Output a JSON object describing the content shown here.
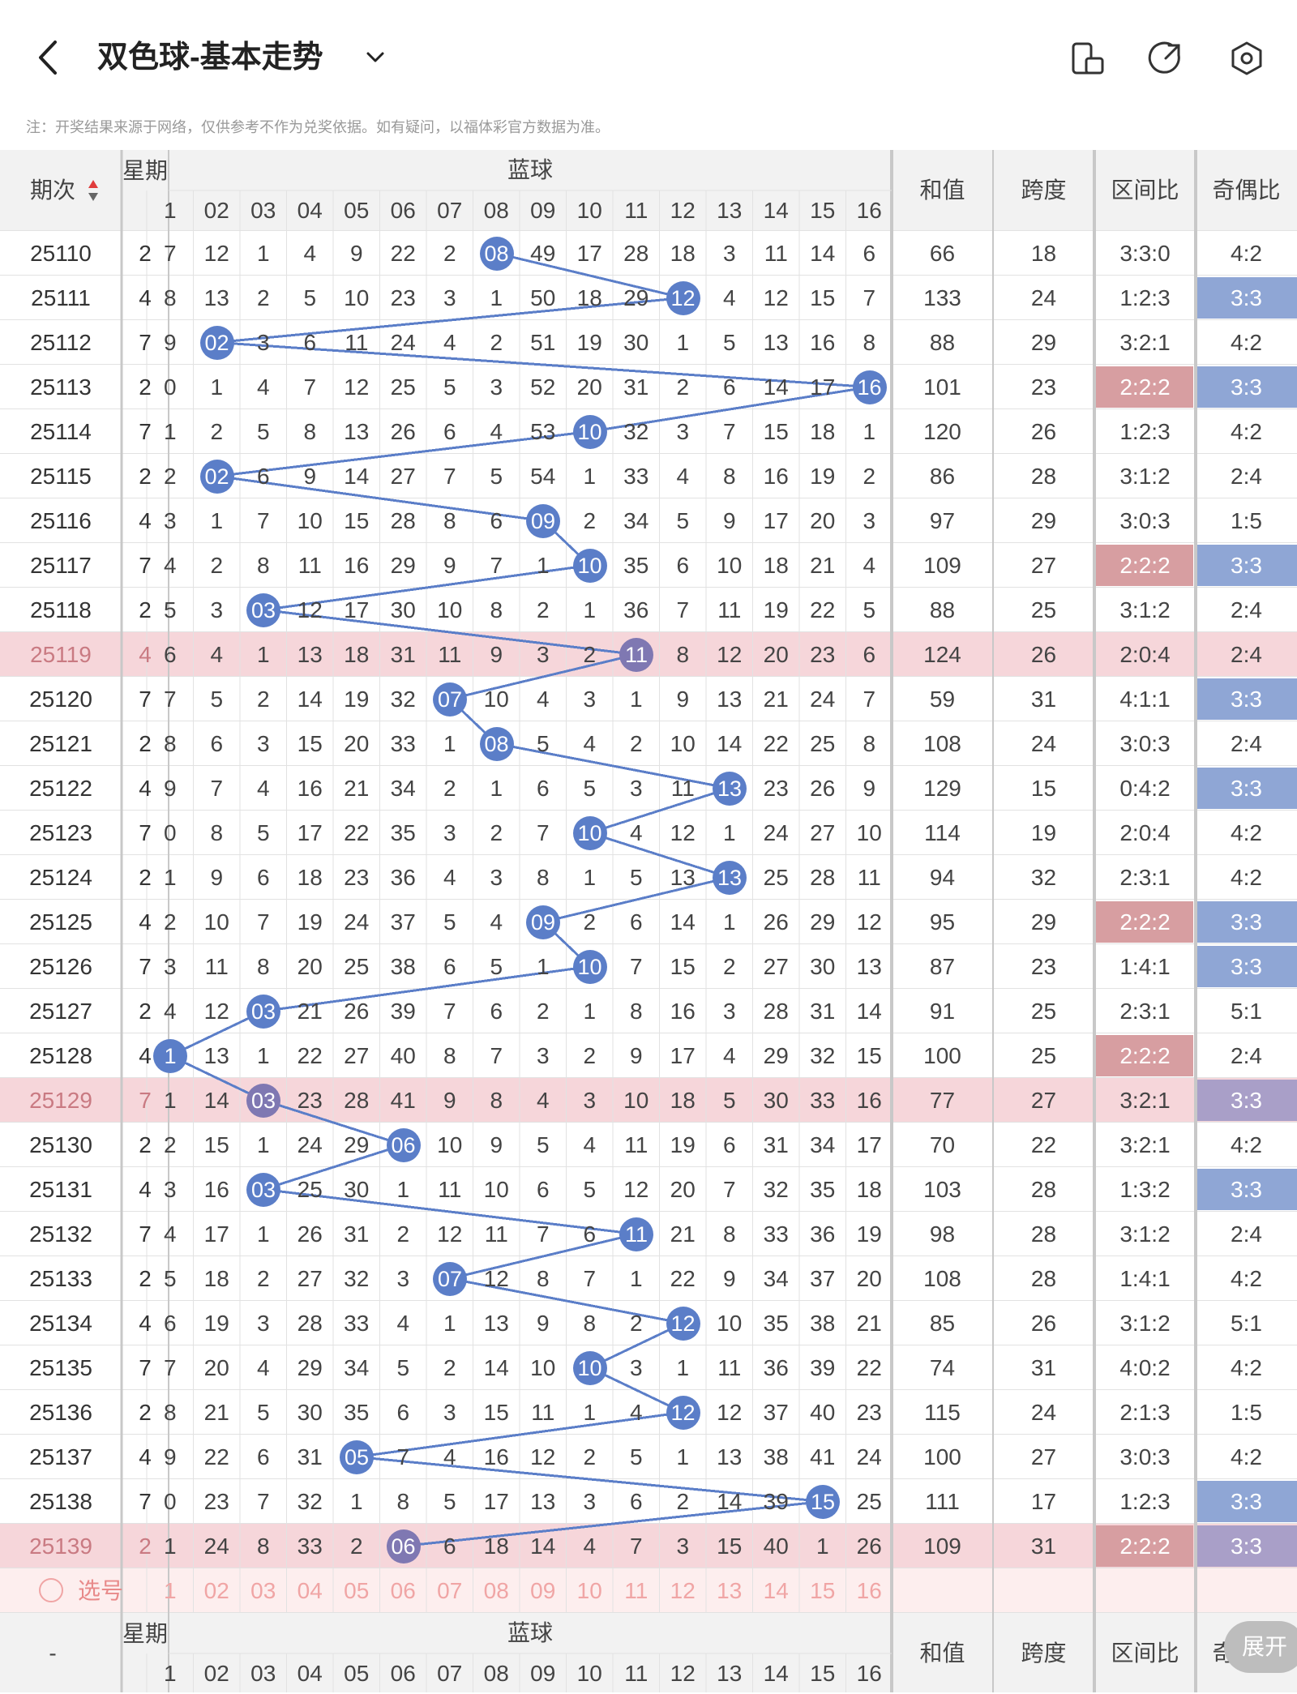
{
  "header": {
    "back_icon": "chevron-left-icon",
    "title": "双色球-基本走势",
    "dropdown_icon": "chevron-down-icon",
    "icons": [
      "phone-rotate-icon",
      "share-icon",
      "settings-icon"
    ]
  },
  "note": "注：开奖结果来源于网络，仅供参考不作为兑奖依据。如有疑问，以福体彩官方数据为准。",
  "table": {
    "issue_header": "期次",
    "week_header": "星期",
    "blue_header": "蓝球",
    "numbers": [
      "1",
      "02",
      "03",
      "04",
      "05",
      "06",
      "07",
      "08",
      "09",
      "10",
      "11",
      "12",
      "13",
      "14",
      "15",
      "16"
    ],
    "sum_header": "和值",
    "span_header": "跨度",
    "zone_header": "区间比",
    "oddeven_header": "奇偶比",
    "colors": {
      "ball": "#5b7ec8",
      "ball_dim": "#7f78b2",
      "highlight_row": "#f6d6da",
      "zone_highlight": "#d79ea1",
      "oe_highlight": "#8fa6d5",
      "oe_highlight_dim": "#a99fc8",
      "select_row": "#fdeeee"
    },
    "rows": [
      {
        "issue": "25110",
        "week": "2",
        "cells": [
          "7",
          "12",
          "1",
          "4",
          "9",
          "22",
          "2",
          "08",
          "49",
          "17",
          "28",
          "18",
          "3",
          "11",
          "14",
          "6"
        ],
        "blue": 8,
        "sum": "66",
        "span": "18",
        "zone": "3:3:0",
        "oe": "4:2"
      },
      {
        "issue": "25111",
        "week": "4",
        "cells": [
          "8",
          "13",
          "2",
          "5",
          "10",
          "23",
          "3",
          "1",
          "50",
          "18",
          "29",
          "12",
          "4",
          "12",
          "15",
          "7"
        ],
        "blue": 12,
        "sum": "133",
        "span": "24",
        "zone": "1:2:3",
        "oe": "3:3",
        "oe_hl": true
      },
      {
        "issue": "25112",
        "week": "7",
        "cells": [
          "9",
          "02",
          "3",
          "6",
          "11",
          "24",
          "4",
          "2",
          "51",
          "19",
          "30",
          "1",
          "5",
          "13",
          "16",
          "8"
        ],
        "blue": 2,
        "sum": "88",
        "span": "29",
        "zone": "3:2:1",
        "oe": "4:2"
      },
      {
        "issue": "25113",
        "week": "2",
        "cells": [
          "0",
          "1",
          "4",
          "7",
          "12",
          "25",
          "5",
          "3",
          "52",
          "20",
          "31",
          "2",
          "6",
          "14",
          "17",
          "16"
        ],
        "blue": 16,
        "sum": "101",
        "span": "23",
        "zone": "2:2:2",
        "zone_hl": true,
        "oe": "3:3",
        "oe_hl": true
      },
      {
        "issue": "25114",
        "week": "7",
        "cells": [
          "1",
          "2",
          "5",
          "8",
          "13",
          "26",
          "6",
          "4",
          "53",
          "10",
          "32",
          "3",
          "7",
          "15",
          "18",
          "1"
        ],
        "blue": 10,
        "sum": "120",
        "span": "26",
        "zone": "1:2:3",
        "oe": "4:2"
      },
      {
        "issue": "25115",
        "week": "2",
        "cells": [
          "2",
          "02",
          "6",
          "9",
          "14",
          "27",
          "7",
          "5",
          "54",
          "1",
          "33",
          "4",
          "8",
          "16",
          "19",
          "2"
        ],
        "blue": 2,
        "sum": "86",
        "span": "28",
        "zone": "3:1:2",
        "oe": "2:4"
      },
      {
        "issue": "25116",
        "week": "4",
        "cells": [
          "3",
          "1",
          "7",
          "10",
          "15",
          "28",
          "8",
          "6",
          "09",
          "2",
          "34",
          "5",
          "9",
          "17",
          "20",
          "3"
        ],
        "blue": 9,
        "sum": "97",
        "span": "29",
        "zone": "3:0:3",
        "oe": "1:5"
      },
      {
        "issue": "25117",
        "week": "7",
        "cells": [
          "4",
          "2",
          "8",
          "11",
          "16",
          "29",
          "9",
          "7",
          "1",
          "10",
          "35",
          "6",
          "10",
          "18",
          "21",
          "4"
        ],
        "blue": 10,
        "sum": "109",
        "span": "27",
        "zone": "2:2:2",
        "zone_hl": true,
        "oe": "3:3",
        "oe_hl": true
      },
      {
        "issue": "25118",
        "week": "2",
        "cells": [
          "5",
          "3",
          "03",
          "12",
          "17",
          "30",
          "10",
          "8",
          "2",
          "1",
          "36",
          "7",
          "11",
          "19",
          "22",
          "5"
        ],
        "blue": 3,
        "sum": "88",
        "span": "25",
        "zone": "3:1:2",
        "oe": "2:4"
      },
      {
        "issue": "25119",
        "week": "4",
        "cells": [
          "6",
          "4",
          "1",
          "13",
          "18",
          "31",
          "11",
          "9",
          "3",
          "2",
          "11",
          "8",
          "12",
          "20",
          "23",
          "6"
        ],
        "blue": 11,
        "sum": "124",
        "span": "26",
        "zone": "2:0:4",
        "oe": "2:4",
        "hl": true
      },
      {
        "issue": "25120",
        "week": "7",
        "cells": [
          "7",
          "5",
          "2",
          "14",
          "19",
          "32",
          "07",
          "10",
          "4",
          "3",
          "1",
          "9",
          "13",
          "21",
          "24",
          "7"
        ],
        "blue": 7,
        "sum": "59",
        "span": "31",
        "zone": "4:1:1",
        "oe": "3:3",
        "oe_hl": true
      },
      {
        "issue": "25121",
        "week": "2",
        "cells": [
          "8",
          "6",
          "3",
          "15",
          "20",
          "33",
          "1",
          "08",
          "5",
          "4",
          "2",
          "10",
          "14",
          "22",
          "25",
          "8"
        ],
        "blue": 8,
        "sum": "108",
        "span": "24",
        "zone": "3:0:3",
        "oe": "2:4"
      },
      {
        "issue": "25122",
        "week": "4",
        "cells": [
          "9",
          "7",
          "4",
          "16",
          "21",
          "34",
          "2",
          "1",
          "6",
          "5",
          "3",
          "11",
          "13",
          "23",
          "26",
          "9"
        ],
        "blue": 13,
        "sum": "129",
        "span": "15",
        "zone": "0:4:2",
        "oe": "3:3",
        "oe_hl": true
      },
      {
        "issue": "25123",
        "week": "7",
        "cells": [
          "0",
          "8",
          "5",
          "17",
          "22",
          "35",
          "3",
          "2",
          "7",
          "10",
          "4",
          "12",
          "1",
          "24",
          "27",
          "10"
        ],
        "blue": 10,
        "sum": "114",
        "span": "19",
        "zone": "2:0:4",
        "oe": "4:2"
      },
      {
        "issue": "25124",
        "week": "2",
        "cells": [
          "1",
          "9",
          "6",
          "18",
          "23",
          "36",
          "4",
          "3",
          "8",
          "1",
          "5",
          "13",
          "13",
          "25",
          "28",
          "11"
        ],
        "blue": 13,
        "sum": "94",
        "span": "32",
        "zone": "2:3:1",
        "oe": "4:2"
      },
      {
        "issue": "25125",
        "week": "4",
        "cells": [
          "2",
          "10",
          "7",
          "19",
          "24",
          "37",
          "5",
          "4",
          "09",
          "2",
          "6",
          "14",
          "1",
          "26",
          "29",
          "12"
        ],
        "blue": 9,
        "sum": "95",
        "span": "29",
        "zone": "2:2:2",
        "zone_hl": true,
        "oe": "3:3",
        "oe_hl": true
      },
      {
        "issue": "25126",
        "week": "7",
        "cells": [
          "3",
          "11",
          "8",
          "20",
          "25",
          "38",
          "6",
          "5",
          "1",
          "10",
          "7",
          "15",
          "2",
          "27",
          "30",
          "13"
        ],
        "blue": 10,
        "sum": "87",
        "span": "23",
        "zone": "1:4:1",
        "oe": "3:3",
        "oe_hl": true
      },
      {
        "issue": "25127",
        "week": "2",
        "cells": [
          "4",
          "12",
          "03",
          "21",
          "26",
          "39",
          "7",
          "6",
          "2",
          "1",
          "8",
          "16",
          "3",
          "28",
          "31",
          "14"
        ],
        "blue": 3,
        "sum": "91",
        "span": "25",
        "zone": "2:3:1",
        "oe": "5:1"
      },
      {
        "issue": "25128",
        "week": "4",
        "cells": [
          "1",
          "13",
          "1",
          "22",
          "27",
          "40",
          "8",
          "7",
          "3",
          "2",
          "9",
          "17",
          "4",
          "29",
          "32",
          "15"
        ],
        "blue": 1,
        "sum": "100",
        "span": "25",
        "zone": "2:2:2",
        "zone_hl": true,
        "oe": "2:4"
      },
      {
        "issue": "25129",
        "week": "7",
        "cells": [
          "1",
          "14",
          "03",
          "23",
          "28",
          "41",
          "9",
          "8",
          "4",
          "3",
          "10",
          "18",
          "5",
          "30",
          "33",
          "16"
        ],
        "blue": 3,
        "sum": "77",
        "span": "27",
        "zone": "3:2:1",
        "oe": "3:3",
        "oe_hl": true,
        "hl": true
      },
      {
        "issue": "25130",
        "week": "2",
        "cells": [
          "2",
          "15",
          "1",
          "24",
          "29",
          "06",
          "10",
          "9",
          "5",
          "4",
          "11",
          "19",
          "6",
          "31",
          "34",
          "17"
        ],
        "blue": 6,
        "sum": "70",
        "span": "22",
        "zone": "3:2:1",
        "oe": "4:2"
      },
      {
        "issue": "25131",
        "week": "4",
        "cells": [
          "3",
          "16",
          "03",
          "25",
          "30",
          "1",
          "11",
          "10",
          "6",
          "5",
          "12",
          "20",
          "7",
          "32",
          "35",
          "18"
        ],
        "blue": 3,
        "sum": "103",
        "span": "28",
        "zone": "1:3:2",
        "oe": "3:3",
        "oe_hl": true
      },
      {
        "issue": "25132",
        "week": "7",
        "cells": [
          "4",
          "17",
          "1",
          "26",
          "31",
          "2",
          "12",
          "11",
          "7",
          "6",
          "11",
          "21",
          "8",
          "33",
          "36",
          "19"
        ],
        "blue": 11,
        "sum": "98",
        "span": "28",
        "zone": "3:1:2",
        "oe": "2:4"
      },
      {
        "issue": "25133",
        "week": "2",
        "cells": [
          "5",
          "18",
          "2",
          "27",
          "32",
          "3",
          "07",
          "12",
          "8",
          "7",
          "1",
          "22",
          "9",
          "34",
          "37",
          "20"
        ],
        "blue": 7,
        "sum": "108",
        "span": "28",
        "zone": "1:4:1",
        "oe": "4:2"
      },
      {
        "issue": "25134",
        "week": "4",
        "cells": [
          "6",
          "19",
          "3",
          "28",
          "33",
          "4",
          "1",
          "13",
          "9",
          "8",
          "2",
          "12",
          "10",
          "35",
          "38",
          "21"
        ],
        "blue": 12,
        "sum": "85",
        "span": "26",
        "zone": "3:1:2",
        "oe": "5:1"
      },
      {
        "issue": "25135",
        "week": "7",
        "cells": [
          "7",
          "20",
          "4",
          "29",
          "34",
          "5",
          "2",
          "14",
          "10",
          "10",
          "3",
          "1",
          "11",
          "36",
          "39",
          "22"
        ],
        "blue": 10,
        "sum": "74",
        "span": "31",
        "zone": "4:0:2",
        "oe": "4:2"
      },
      {
        "issue": "25136",
        "week": "2",
        "cells": [
          "8",
          "21",
          "5",
          "30",
          "35",
          "6",
          "3",
          "15",
          "11",
          "1",
          "4",
          "12",
          "12",
          "37",
          "40",
          "23"
        ],
        "blue": 12,
        "sum": "115",
        "span": "24",
        "zone": "2:1:3",
        "oe": "1:5"
      },
      {
        "issue": "25137",
        "week": "4",
        "cells": [
          "9",
          "22",
          "6",
          "31",
          "05",
          "7",
          "4",
          "16",
          "12",
          "2",
          "5",
          "1",
          "13",
          "38",
          "41",
          "24"
        ],
        "blue": 5,
        "sum": "100",
        "span": "27",
        "zone": "3:0:3",
        "oe": "4:2"
      },
      {
        "issue": "25138",
        "week": "7",
        "cells": [
          "0",
          "23",
          "7",
          "32",
          "1",
          "8",
          "5",
          "17",
          "13",
          "3",
          "6",
          "2",
          "14",
          "39",
          "15",
          "25"
        ],
        "blue": 15,
        "sum": "111",
        "span": "17",
        "zone": "1:2:3",
        "oe": "3:3",
        "oe_hl": true
      },
      {
        "issue": "25139",
        "week": "2",
        "cells": [
          "1",
          "24",
          "8",
          "33",
          "2",
          "06",
          "6",
          "18",
          "14",
          "4",
          "7",
          "3",
          "15",
          "40",
          "1",
          "26"
        ],
        "blue": 6,
        "sum": "109",
        "span": "31",
        "zone": "2:2:2",
        "zone_hl": true,
        "oe": "3:3",
        "oe_hl": true,
        "hl": true
      }
    ],
    "select_label": "选号",
    "footer_issue": "-",
    "expand_label": "展开"
  }
}
